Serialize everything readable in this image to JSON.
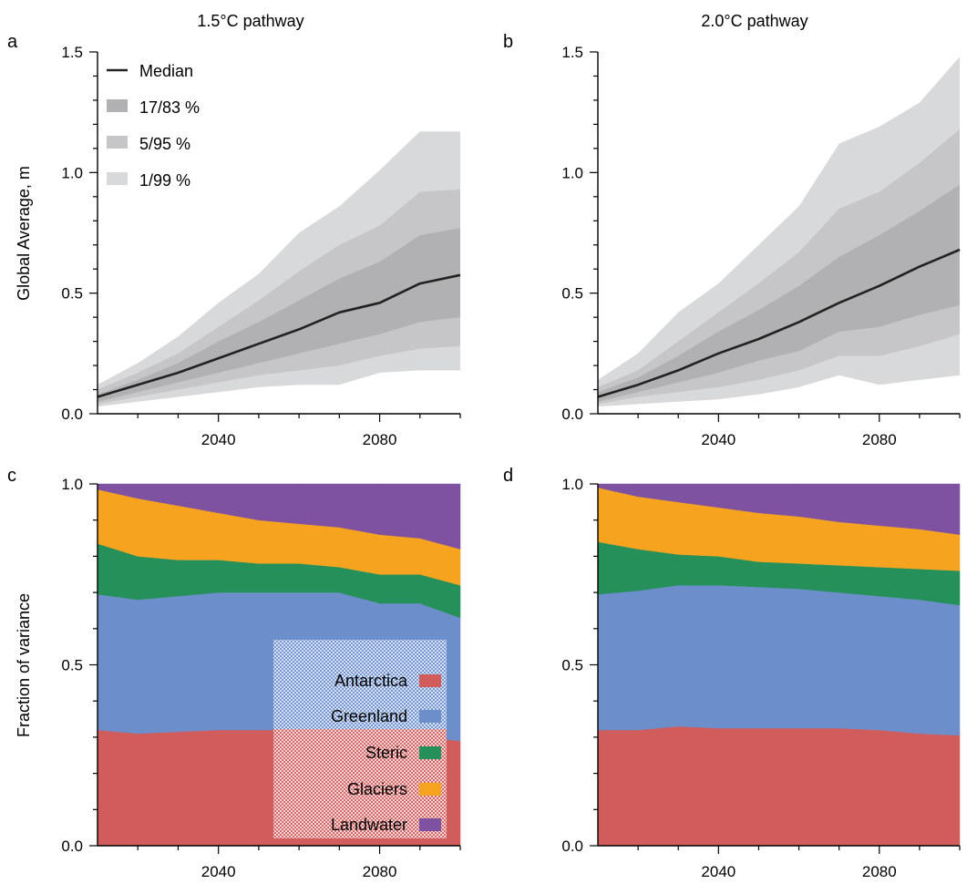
{
  "colors": {
    "median": "#222222",
    "band_17_83": "#b1b1b3",
    "band_5_95": "#c6c6c8",
    "band_1_99": "#d8d9da",
    "antarctica": "#d05c5c",
    "greenland": "#6c8fcb",
    "steric": "#25905a",
    "glaciers": "#f6a41f",
    "landwater": "#7f52a1"
  },
  "chart_data": [
    {
      "id": "a",
      "type": "area",
      "letter": "a",
      "title": "1.5°C pathway",
      "ylabel": "Global Average, m",
      "xlim": [
        2010,
        2100
      ],
      "ylim": [
        0,
        1.5
      ],
      "xticks": [
        2040,
        2080
      ],
      "xticklabels": [
        "2040",
        "2080"
      ],
      "yticks": [
        0,
        0.5,
        1.0,
        1.5
      ],
      "yticklabels": [
        "0.0",
        "0.5",
        "1.0",
        "1.5"
      ],
      "x": [
        2010,
        2020,
        2030,
        2040,
        2050,
        2060,
        2070,
        2080,
        2090,
        2100
      ],
      "series": [
        {
          "name": "Median",
          "values": [
            0.07,
            0.12,
            0.17,
            0.23,
            0.29,
            0.35,
            0.42,
            0.46,
            0.54,
            0.575
          ]
        },
        {
          "name": "17/83 %",
          "lower": [
            0.05,
            0.09,
            0.13,
            0.17,
            0.21,
            0.25,
            0.29,
            0.33,
            0.38,
            0.4
          ],
          "upper": [
            0.08,
            0.14,
            0.21,
            0.3,
            0.38,
            0.47,
            0.56,
            0.63,
            0.74,
            0.77
          ]
        },
        {
          "name": "5/95 %",
          "lower": [
            0.04,
            0.07,
            0.1,
            0.13,
            0.16,
            0.18,
            0.2,
            0.24,
            0.27,
            0.28
          ],
          "upper": [
            0.1,
            0.17,
            0.25,
            0.36,
            0.47,
            0.59,
            0.7,
            0.78,
            0.92,
            0.93
          ]
        },
        {
          "name": "1/99 %",
          "lower": [
            0.03,
            0.05,
            0.07,
            0.09,
            0.11,
            0.12,
            0.12,
            0.17,
            0.18,
            0.18
          ],
          "upper": [
            0.12,
            0.21,
            0.32,
            0.46,
            0.58,
            0.75,
            0.86,
            1.01,
            1.17,
            1.17
          ]
        }
      ],
      "legend": {
        "placement": "top-left",
        "entries": [
          {
            "label": "Median",
            "kind": "line",
            "color_key": "median"
          },
          {
            "label": "17/83 %",
            "kind": "patch",
            "color_key": "band_17_83"
          },
          {
            "label": "5/95 %",
            "kind": "patch",
            "color_key": "band_5_95"
          },
          {
            "label": "1/99 %",
            "kind": "patch",
            "color_key": "band_1_99"
          }
        ]
      }
    },
    {
      "id": "b",
      "type": "area",
      "letter": "b",
      "title": "2.0°C pathway",
      "ylabel": "",
      "xlim": [
        2010,
        2100
      ],
      "ylim": [
        0,
        1.5
      ],
      "xticks": [
        2040,
        2080
      ],
      "xticklabels": [
        "2040",
        "2080"
      ],
      "yticks": [
        0,
        0.5,
        1.0,
        1.5
      ],
      "yticklabels": [
        "0.0",
        "0.5",
        "1.0",
        "1.5"
      ],
      "x": [
        2010,
        2020,
        2030,
        2040,
        2050,
        2060,
        2070,
        2080,
        2090,
        2100
      ],
      "series": [
        {
          "name": "Median",
          "values": [
            0.07,
            0.12,
            0.18,
            0.25,
            0.31,
            0.38,
            0.46,
            0.53,
            0.61,
            0.68
          ]
        },
        {
          "name": "17/83 %",
          "lower": [
            0.05,
            0.09,
            0.13,
            0.17,
            0.22,
            0.26,
            0.34,
            0.36,
            0.41,
            0.45
          ],
          "upper": [
            0.09,
            0.15,
            0.24,
            0.34,
            0.43,
            0.53,
            0.65,
            0.74,
            0.84,
            0.95
          ]
        },
        {
          "name": "5/95 %",
          "lower": [
            0.04,
            0.07,
            0.09,
            0.11,
            0.14,
            0.18,
            0.24,
            0.24,
            0.28,
            0.33
          ],
          "upper": [
            0.11,
            0.18,
            0.3,
            0.42,
            0.54,
            0.67,
            0.85,
            0.92,
            1.04,
            1.18
          ]
        },
        {
          "name": "1/99 %",
          "lower": [
            0.03,
            0.04,
            0.05,
            0.06,
            0.08,
            0.11,
            0.16,
            0.12,
            0.14,
            0.16
          ],
          "upper": [
            0.14,
            0.25,
            0.42,
            0.54,
            0.7,
            0.86,
            1.12,
            1.19,
            1.29,
            1.48
          ]
        }
      ]
    },
    {
      "id": "c",
      "type": "area",
      "stacked": true,
      "letter": "c",
      "title": "",
      "ylabel": "Fraction of variance",
      "xlim": [
        2010,
        2100
      ],
      "ylim": [
        0,
        1.0
      ],
      "xticks": [
        2040,
        2080
      ],
      "xticklabels": [
        "2040",
        "2080"
      ],
      "yticks": [
        0,
        0.5,
        1.0
      ],
      "yticklabels": [
        "0.0",
        "0.5",
        "1.0"
      ],
      "x": [
        2010,
        2020,
        2030,
        2040,
        2050,
        2060,
        2070,
        2080,
        2090,
        2100
      ],
      "series": [
        {
          "name": "Antarctica",
          "color_key": "antarctica",
          "values": [
            0.32,
            0.31,
            0.315,
            0.32,
            0.32,
            0.32,
            0.315,
            0.305,
            0.3,
            0.29
          ]
        },
        {
          "name": "Greenland",
          "color_key": "greenland",
          "values": [
            0.375,
            0.37,
            0.375,
            0.38,
            0.38,
            0.38,
            0.385,
            0.365,
            0.37,
            0.34
          ]
        },
        {
          "name": "Steric",
          "color_key": "steric",
          "values": [
            0.14,
            0.12,
            0.1,
            0.09,
            0.08,
            0.08,
            0.07,
            0.08,
            0.08,
            0.09
          ]
        },
        {
          "name": "Glaciers",
          "color_key": "glaciers",
          "values": [
            0.15,
            0.16,
            0.15,
            0.13,
            0.12,
            0.11,
            0.11,
            0.11,
            0.1,
            0.1
          ]
        },
        {
          "name": "Landwater",
          "color_key": "landwater",
          "values": [
            0.015,
            0.04,
            0.06,
            0.08,
            0.1,
            0.11,
            0.12,
            0.14,
            0.15,
            0.18
          ]
        }
      ],
      "legend": {
        "placement": "bottom-right",
        "order": [
          "Antarctica",
          "Greenland",
          "Steric",
          "Glaciers",
          "Landwater"
        ]
      }
    },
    {
      "id": "d",
      "type": "area",
      "stacked": true,
      "letter": "d",
      "title": "",
      "ylabel": "",
      "xlim": [
        2010,
        2100
      ],
      "ylim": [
        0,
        1.0
      ],
      "xticks": [
        2040,
        2080
      ],
      "xticklabels": [
        "2040",
        "2080"
      ],
      "yticks": [
        0,
        0.5,
        1.0
      ],
      "yticklabels": [
        "0.0",
        "0.5",
        "1.0"
      ],
      "x": [
        2010,
        2020,
        2030,
        2040,
        2050,
        2060,
        2070,
        2080,
        2090,
        2100
      ],
      "series": [
        {
          "name": "Antarctica",
          "color_key": "antarctica",
          "values": [
            0.32,
            0.32,
            0.33,
            0.325,
            0.325,
            0.325,
            0.325,
            0.32,
            0.31,
            0.305
          ]
        },
        {
          "name": "Greenland",
          "color_key": "greenland",
          "values": [
            0.375,
            0.385,
            0.39,
            0.395,
            0.39,
            0.385,
            0.375,
            0.37,
            0.37,
            0.36
          ]
        },
        {
          "name": "Steric",
          "color_key": "steric",
          "values": [
            0.145,
            0.115,
            0.085,
            0.08,
            0.07,
            0.07,
            0.075,
            0.08,
            0.085,
            0.095
          ]
        },
        {
          "name": "Glaciers",
          "color_key": "glaciers",
          "values": [
            0.15,
            0.145,
            0.145,
            0.135,
            0.135,
            0.13,
            0.12,
            0.115,
            0.11,
            0.1
          ]
        },
        {
          "name": "Landwater",
          "color_key": "landwater",
          "values": [
            0.01,
            0.035,
            0.05,
            0.065,
            0.08,
            0.09,
            0.105,
            0.115,
            0.125,
            0.14
          ]
        }
      ]
    }
  ]
}
